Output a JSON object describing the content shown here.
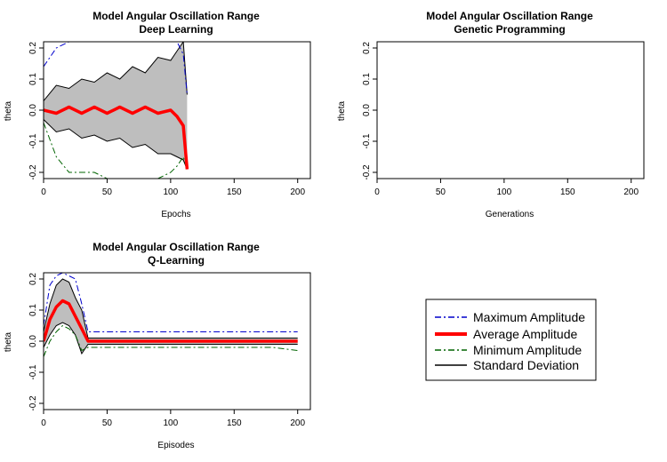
{
  "colors": {
    "maximum": "#0000cc",
    "average": "#ff0000",
    "minimum": "#006400",
    "std_band_fill": "#bebebe",
    "std_line": "#000000"
  },
  "legend": {
    "placement": "bottom-right",
    "entries": [
      "Maximum Amplitude",
      "Average Amplitude",
      "Minimum Amplitude",
      "Standard Deviation"
    ]
  },
  "chart_data": [
    {
      "type": "line",
      "title": "Model Angular Oscillation Range",
      "subtitle": "Deep Learning",
      "xlabel": "Epochs",
      "ylabel": "theta",
      "xlim": [
        0,
        210
      ],
      "ylim": [
        -0.22,
        0.22
      ],
      "x_ticks": [
        "0",
        "50",
        "100",
        "150",
        "200"
      ],
      "y_ticks": [
        "-0.2",
        "-0.1",
        "0.0",
        "0.1",
        "0.2"
      ],
      "x": [
        0,
        10,
        20,
        30,
        40,
        50,
        60,
        70,
        80,
        90,
        100,
        105,
        110,
        113
      ],
      "series": [
        {
          "name": "Maximum Amplitude",
          "values": [
            0.14,
            0.2,
            0.22,
            0.22,
            0.22,
            0.22,
            0.22,
            0.22,
            0.22,
            0.22,
            0.22,
            0.22,
            0.18,
            0.05
          ]
        },
        {
          "name": "Average Amplitude",
          "values": [
            0.0,
            -0.01,
            0.01,
            -0.01,
            0.01,
            -0.01,
            0.01,
            -0.01,
            0.01,
            -0.01,
            0.0,
            -0.02,
            -0.05,
            -0.19
          ]
        },
        {
          "name": "Minimum Amplitude",
          "values": [
            -0.04,
            -0.15,
            -0.2,
            -0.2,
            -0.2,
            -0.22,
            -0.22,
            -0.22,
            -0.22,
            -0.22,
            -0.2,
            -0.18,
            -0.15,
            -0.19
          ]
        },
        {
          "name": "Standard Deviation",
          "upper": [
            0.03,
            0.08,
            0.07,
            0.1,
            0.09,
            0.12,
            0.1,
            0.14,
            0.12,
            0.17,
            0.16,
            0.19,
            0.22,
            0.05
          ],
          "lower": [
            -0.03,
            -0.07,
            -0.06,
            -0.09,
            -0.08,
            -0.1,
            -0.09,
            -0.12,
            -0.11,
            -0.14,
            -0.14,
            -0.15,
            -0.16,
            -0.19
          ]
        }
      ]
    },
    {
      "type": "line",
      "title": "Model Angular Oscillation Range",
      "subtitle": "Genetic Programming",
      "xlabel": "Generations",
      "ylabel": "theta",
      "xlim": [
        0,
        210
      ],
      "ylim": [
        -0.22,
        0.22
      ],
      "x_ticks": [
        "0",
        "50",
        "100",
        "150",
        "200"
      ],
      "y_ticks": [
        "-0.2",
        "-0.1",
        "0.0",
        "0.1",
        "0.2"
      ],
      "x": [],
      "series": []
    },
    {
      "type": "line",
      "title": "Model Angular Oscillation Range",
      "subtitle": "Q-Learning",
      "xlabel": "Episodes",
      "ylabel": "theta",
      "xlim": [
        0,
        210
      ],
      "ylim": [
        -0.22,
        0.22
      ],
      "x_ticks": [
        "0",
        "50",
        "100",
        "150",
        "200"
      ],
      "y_ticks": [
        "-0.2",
        "-0.1",
        "0.0",
        "0.1",
        "0.2"
      ],
      "x": [
        0,
        5,
        10,
        15,
        20,
        25,
        30,
        35,
        40,
        60,
        80,
        100,
        120,
        140,
        160,
        180,
        200
      ],
      "series": [
        {
          "name": "Maximum Amplitude",
          "values": [
            0.05,
            0.18,
            0.21,
            0.22,
            0.21,
            0.2,
            0.12,
            0.03,
            0.03,
            0.03,
            0.03,
            0.03,
            0.03,
            0.03,
            0.03,
            0.03,
            0.03
          ]
        },
        {
          "name": "Average Amplitude",
          "values": [
            0.0,
            0.07,
            0.11,
            0.13,
            0.12,
            0.08,
            0.04,
            0.0,
            0.0,
            0.0,
            0.0,
            0.0,
            0.0,
            0.0,
            0.0,
            0.0,
            0.0
          ]
        },
        {
          "name": "Minimum Amplitude",
          "values": [
            -0.05,
            0.0,
            0.03,
            0.05,
            0.04,
            0.02,
            -0.03,
            -0.02,
            -0.02,
            -0.02,
            -0.02,
            -0.02,
            -0.02,
            -0.02,
            -0.02,
            -0.02,
            -0.03
          ]
        },
        {
          "name": "Standard Deviation",
          "upper": [
            0.03,
            0.12,
            0.18,
            0.2,
            0.19,
            0.14,
            0.1,
            0.01,
            0.01,
            0.01,
            0.01,
            0.01,
            0.01,
            0.01,
            0.01,
            0.01,
            0.01
          ],
          "lower": [
            -0.02,
            0.02,
            0.05,
            0.06,
            0.05,
            0.02,
            -0.04,
            -0.01,
            -0.01,
            -0.01,
            -0.01,
            -0.01,
            -0.01,
            -0.01,
            -0.01,
            -0.01,
            -0.01
          ]
        }
      ]
    }
  ]
}
